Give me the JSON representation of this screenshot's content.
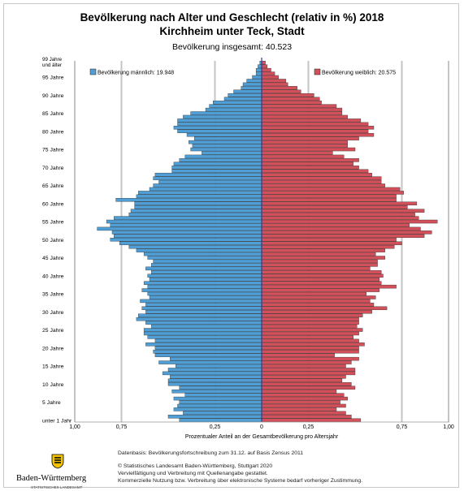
{
  "header": {
    "title": "Bevölkerung nach Alter und Geschlecht (relativ in %) 2018",
    "subtitle": "Kirchheim unter Teck, Stadt",
    "total": "Bevölkerung insgesamt: 40.523"
  },
  "chart_data": {
    "type": "bar",
    "orientation": "horizontal-pyramid",
    "xlabel": "Prozentualer Anteil an der Gesamtbevölkerung pro Altersjahr",
    "xlim": [
      -1.0,
      1.0
    ],
    "x_ticks": [
      "1,00",
      "0,75",
      "0,25",
      "0",
      "0,25",
      "0,75",
      "1,00"
    ],
    "x_tick_values": [
      -1.0,
      -0.75,
      -0.25,
      0,
      0.25,
      0.75,
      1.0
    ],
    "y_tick_labels": [
      {
        "age": 0,
        "label": "unter 1 Jahr"
      },
      {
        "age": 5,
        "label": "5 Jahre"
      },
      {
        "age": 10,
        "label": "10 Jahre"
      },
      {
        "age": 15,
        "label": "15 Jahre"
      },
      {
        "age": 20,
        "label": "20 Jahre"
      },
      {
        "age": 25,
        "label": "25 Jahre"
      },
      {
        "age": 30,
        "label": "30 Jahre"
      },
      {
        "age": 35,
        "label": "35 Jahre"
      },
      {
        "age": 40,
        "label": "40 Jahre"
      },
      {
        "age": 45,
        "label": "45 Jahre"
      },
      {
        "age": 50,
        "label": "50 Jahre"
      },
      {
        "age": 55,
        "label": "55 Jahre"
      },
      {
        "age": 60,
        "label": "60 Jahre"
      },
      {
        "age": 65,
        "label": "65 Jahre"
      },
      {
        "age": 70,
        "label": "70 Jahre"
      },
      {
        "age": 75,
        "label": "75 Jahre"
      },
      {
        "age": 80,
        "label": "80 Jahre"
      },
      {
        "age": 85,
        "label": "85 Jahre"
      },
      {
        "age": 90,
        "label": "90 Jahre"
      },
      {
        "age": 95,
        "label": "95 Jahre"
      },
      {
        "age": 99,
        "label": "99 Jahre\nund älter"
      }
    ],
    "ages": [
      0,
      1,
      2,
      3,
      4,
      5,
      6,
      7,
      8,
      9,
      10,
      11,
      12,
      13,
      14,
      15,
      16,
      17,
      18,
      19,
      20,
      21,
      22,
      23,
      24,
      25,
      26,
      27,
      28,
      29,
      30,
      31,
      32,
      33,
      34,
      35,
      36,
      37,
      38,
      39,
      40,
      41,
      42,
      43,
      44,
      45,
      46,
      47,
      48,
      49,
      50,
      51,
      52,
      53,
      54,
      55,
      56,
      57,
      58,
      59,
      60,
      61,
      62,
      63,
      64,
      65,
      66,
      67,
      68,
      69,
      70,
      71,
      72,
      73,
      74,
      75,
      76,
      77,
      78,
      79,
      80,
      81,
      82,
      83,
      84,
      85,
      86,
      87,
      88,
      89,
      90,
      91,
      92,
      93,
      94,
      95,
      96,
      97,
      98,
      99
    ],
    "series": [
      {
        "name": "Bevölkerung männlich: 19.948",
        "color": "#4f9fd6",
        "side": "left",
        "values": [
          0.44,
          0.5,
          0.42,
          0.47,
          0.45,
          0.44,
          0.47,
          0.41,
          0.48,
          0.44,
          0.5,
          0.5,
          0.49,
          0.53,
          0.5,
          0.46,
          0.55,
          0.49,
          0.57,
          0.58,
          0.57,
          0.62,
          0.57,
          0.61,
          0.63,
          0.63,
          0.59,
          0.62,
          0.67,
          0.66,
          0.62,
          0.64,
          0.62,
          0.65,
          0.6,
          0.61,
          0.64,
          0.61,
          0.63,
          0.6,
          0.61,
          0.59,
          0.62,
          0.59,
          0.58,
          0.61,
          0.63,
          0.67,
          0.71,
          0.76,
          0.81,
          0.79,
          0.8,
          0.88,
          0.81,
          0.83,
          0.79,
          0.71,
          0.7,
          0.68,
          0.68,
          0.78,
          0.67,
          0.66,
          0.6,
          0.58,
          0.55,
          0.58,
          0.57,
          0.48,
          0.48,
          0.47,
          0.44,
          0.41,
          0.32,
          0.38,
          0.37,
          0.39,
          0.36,
          0.4,
          0.45,
          0.47,
          0.45,
          0.45,
          0.42,
          0.38,
          0.3,
          0.28,
          0.26,
          0.2,
          0.18,
          0.15,
          0.11,
          0.1,
          0.08,
          0.05,
          0.03,
          0.03,
          0.02,
          0.01
        ]
      },
      {
        "name": "Bevölkerung weiblich: 20.575",
        "color": "#d2505a",
        "side": "right",
        "values": [
          0.53,
          0.48,
          0.45,
          0.4,
          0.45,
          0.42,
          0.46,
          0.44,
          0.4,
          0.5,
          0.48,
          0.43,
          0.45,
          0.5,
          0.5,
          0.45,
          0.48,
          0.52,
          0.39,
          0.52,
          0.52,
          0.55,
          0.52,
          0.49,
          0.52,
          0.54,
          0.51,
          0.52,
          0.52,
          0.54,
          0.59,
          0.67,
          0.6,
          0.58,
          0.61,
          0.56,
          0.63,
          0.72,
          0.64,
          0.63,
          0.65,
          0.64,
          0.58,
          0.62,
          0.62,
          0.66,
          0.61,
          0.66,
          0.71,
          0.75,
          0.72,
          0.87,
          0.91,
          0.85,
          0.79,
          0.94,
          0.84,
          0.82,
          0.87,
          0.78,
          0.83,
          0.72,
          0.72,
          0.76,
          0.74,
          0.66,
          0.64,
          0.64,
          0.59,
          0.57,
          0.52,
          0.49,
          0.52,
          0.44,
          0.38,
          0.5,
          0.46,
          0.46,
          0.52,
          0.6,
          0.57,
          0.6,
          0.57,
          0.53,
          0.46,
          0.43,
          0.43,
          0.4,
          0.32,
          0.31,
          0.28,
          0.21,
          0.19,
          0.14,
          0.13,
          0.09,
          0.07,
          0.05,
          0.03,
          0.02
        ]
      }
    ]
  },
  "footer": {
    "lines": [
      "Datenbasis: Bevölkerungsfortschreibung zum 31.12. auf Basis Zensus 2011",
      "© Statistisches Landesamt Baden-Württemberg, Stuttgart 2020",
      "Vervielfältigung und Verbreitung mit Quellenangabe gestattet.",
      "Kommerzielle Nutzung bzw. Verbreitung über elektronische Systeme bedarf vorheriger Zustimmung."
    ],
    "logo_name": "Baden-Württemberg",
    "logo_sub": "STATISTISCHES LANDESAMT"
  }
}
